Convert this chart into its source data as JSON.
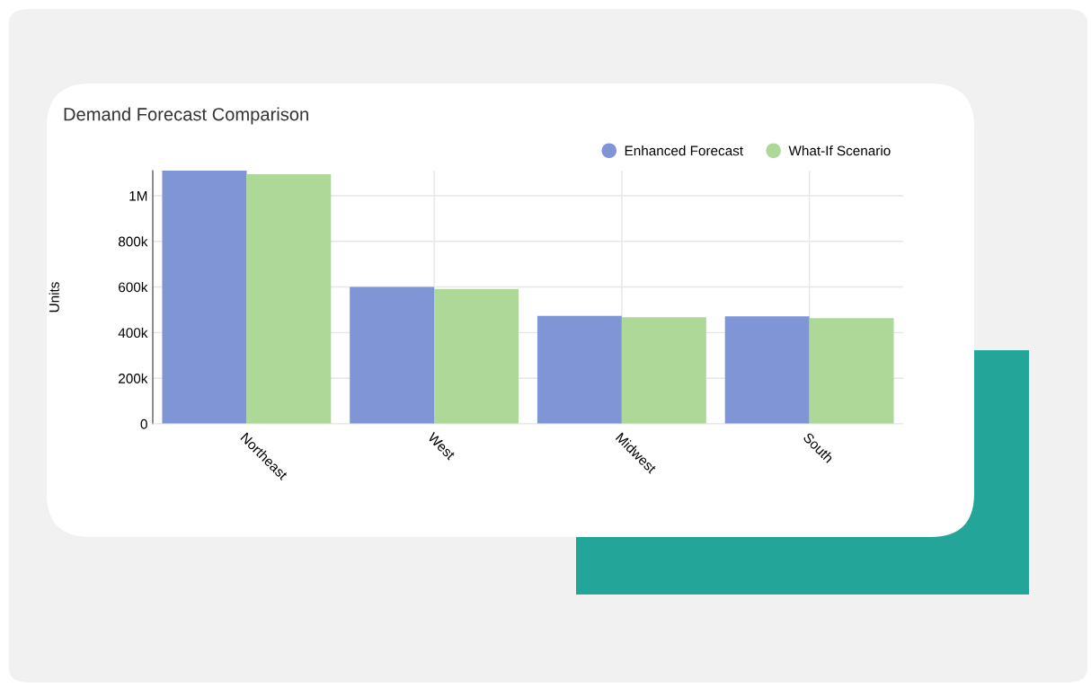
{
  "chart_data": {
    "type": "bar",
    "title": "Demand Forecast Comparison",
    "ylabel": "Units",
    "categories": [
      "Northeast",
      "West",
      "Midwest",
      "South"
    ],
    "series": [
      {
        "name": "Enhanced Forecast",
        "color": "#7f95d6",
        "values": [
          1110000,
          600000,
          473000,
          471000
        ]
      },
      {
        "name": "What-If Scenario",
        "color": "#aed897",
        "values": [
          1094000,
          591000,
          467000,
          463000
        ]
      }
    ],
    "ylim": [
      0,
      1110000
    ],
    "yticks": [
      {
        "value": 0,
        "label": "0"
      },
      {
        "value": 200000,
        "label": "200k"
      },
      {
        "value": 400000,
        "label": "400k"
      },
      {
        "value": 600000,
        "label": "600k"
      },
      {
        "value": 800000,
        "label": "800k"
      },
      {
        "value": 1000000,
        "label": "1M"
      }
    ],
    "grid": true,
    "legend": "top right"
  }
}
